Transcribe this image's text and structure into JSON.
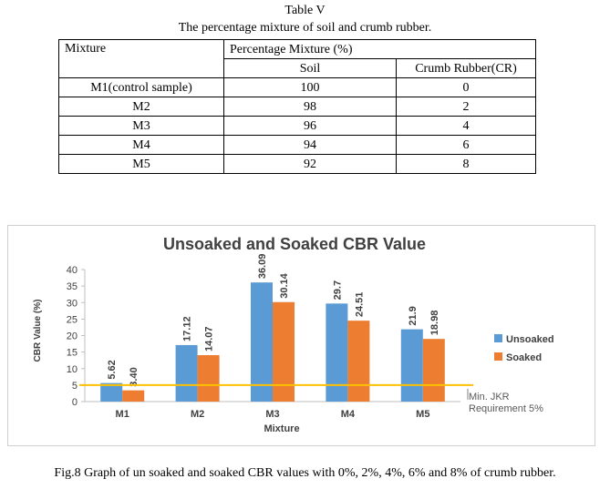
{
  "table": {
    "label": "Table V",
    "title": "The percentage mixture of soil and crumb rubber.",
    "headers": {
      "mixture": "Mixture",
      "group": "Percentage Mixture (%)",
      "soil": "Soil",
      "cr": "Crumb Rubber(CR)"
    },
    "rows": [
      {
        "mixture": "M1(control sample)",
        "soil": "100",
        "cr": "0"
      },
      {
        "mixture": "M2",
        "soil": "98",
        "cr": "2"
      },
      {
        "mixture": "M3",
        "soil": "96",
        "cr": "4"
      },
      {
        "mixture": "M4",
        "soil": "94",
        "cr": "6"
      },
      {
        "mixture": "M5",
        "soil": "92",
        "cr": "8"
      }
    ]
  },
  "chart_data": {
    "type": "bar",
    "title": "Unsoaked and Soaked CBR Value",
    "xlabel": "Mixture",
    "ylabel": "CBR Value (%)",
    "categories": [
      "M1",
      "M2",
      "M3",
      "M4",
      "M5"
    ],
    "series": [
      {
        "name": "Unsoaked",
        "values": [
          5.62,
          17.12,
          36.09,
          29.7,
          21.9
        ],
        "labels": [
          "5.62",
          "17.12",
          "36.09",
          "29.7",
          "21.9"
        ],
        "color": "#5b9bd5"
      },
      {
        "name": "Soaked",
        "values": [
          3.4,
          14.07,
          30.14,
          24.51,
          18.98
        ],
        "labels": [
          "3.40",
          "14.07",
          "30.14",
          "24.51",
          "18.98"
        ],
        "color": "#ed7d31"
      }
    ],
    "ylim": [
      0,
      40
    ],
    "yticks": [
      "0",
      "5",
      "10",
      "15",
      "20",
      "25",
      "30",
      "35",
      "40"
    ],
    "reference_line": {
      "value": 5,
      "label_lines": [
        "Min. JKR",
        "Requirement 5%"
      ],
      "color": "#ffc000"
    },
    "grid": false,
    "legend_position": "right"
  },
  "figure_caption": "Fig.8 Graph of un soaked and soaked CBR values with 0%, 2%, 4%, 6% and 8% of crumb rubber."
}
